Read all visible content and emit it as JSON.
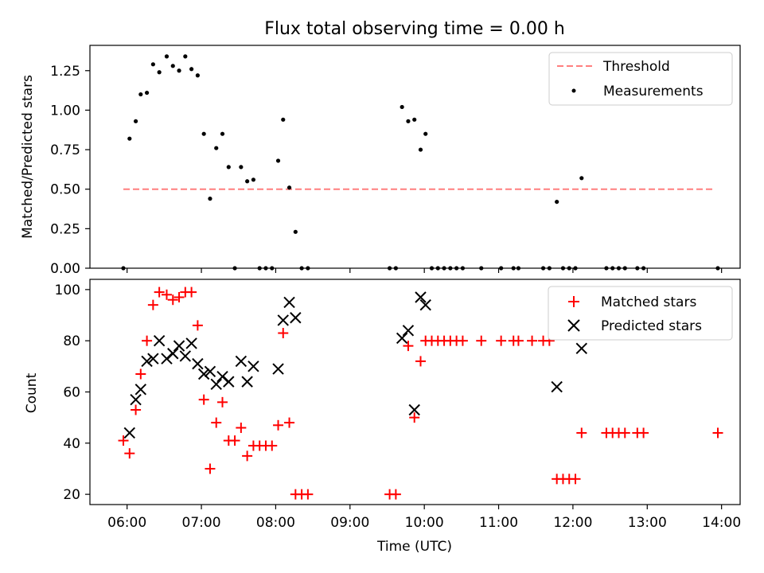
{
  "chart_data": [
    {
      "type": "scatter",
      "title": "Flux total observing time = 0.00 h",
      "xlabel": "",
      "ylabel": "Matched/Predicted stars",
      "xlim": [
        "05:30",
        "14:15"
      ],
      "ylim": [
        0,
        1.41
      ],
      "x_ticks": [
        "06:00",
        "07:00",
        "08:00",
        "09:00",
        "10:00",
        "11:00",
        "12:00",
        "13:00",
        "14:00"
      ],
      "y_ticks": [
        "0.00",
        "0.25",
        "0.50",
        "0.75",
        "1.00",
        "1.25"
      ],
      "grid": false,
      "legend_position": "top-right",
      "legend": [
        "Threshold",
        "Measurements"
      ],
      "threshold": {
        "name": "Threshold",
        "value": 0.5,
        "x_start": "05:57",
        "x_end": "13:55",
        "color": "#ff7f7f",
        "style": "dashed"
      },
      "measurements": {
        "name": "Measurements",
        "color": "#000000",
        "points": [
          [
            "05:57",
            0.0
          ],
          [
            "06:02",
            0.82
          ],
          [
            "06:07",
            0.93
          ],
          [
            "06:11",
            1.1
          ],
          [
            "06:16",
            1.11
          ],
          [
            "06:21",
            1.29
          ],
          [
            "06:26",
            1.24
          ],
          [
            "06:32",
            1.34
          ],
          [
            "06:37",
            1.28
          ],
          [
            "06:42",
            1.25
          ],
          [
            "06:47",
            1.34
          ],
          [
            "06:52",
            1.26
          ],
          [
            "06:57",
            1.22
          ],
          [
            "07:02",
            0.85
          ],
          [
            "07:07",
            0.44
          ],
          [
            "07:12",
            0.76
          ],
          [
            "07:17",
            0.85
          ],
          [
            "07:22",
            0.64
          ],
          [
            "07:27",
            0.0
          ],
          [
            "07:32",
            0.64
          ],
          [
            "07:37",
            0.55
          ],
          [
            "07:42",
            0.56
          ],
          [
            "07:47",
            0.0
          ],
          [
            "07:52",
            0.0
          ],
          [
            "07:57",
            0.0
          ],
          [
            "08:02",
            0.68
          ],
          [
            "08:06",
            0.94
          ],
          [
            "08:11",
            0.51
          ],
          [
            "08:16",
            0.23
          ],
          [
            "08:21",
            0.0
          ],
          [
            "08:26",
            0.0
          ],
          [
            "09:32",
            0.0
          ],
          [
            "09:37",
            0.0
          ],
          [
            "09:42",
            1.02
          ],
          [
            "09:47",
            0.93
          ],
          [
            "09:52",
            0.94
          ],
          [
            "09:57",
            0.75
          ],
          [
            "10:01",
            0.85
          ],
          [
            "10:06",
            0.0
          ],
          [
            "10:11",
            0.0
          ],
          [
            "10:16",
            0.0
          ],
          [
            "10:21",
            0.0
          ],
          [
            "10:26",
            0.0
          ],
          [
            "10:31",
            0.0
          ],
          [
            "10:46",
            0.0
          ],
          [
            "11:02",
            0.0
          ],
          [
            "11:12",
            0.0
          ],
          [
            "11:16",
            0.0
          ],
          [
            "11:36",
            0.0
          ],
          [
            "11:41",
            0.0
          ],
          [
            "11:47",
            0.42
          ],
          [
            "11:52",
            0.0
          ],
          [
            "11:57",
            0.0
          ],
          [
            "12:02",
            0.0
          ],
          [
            "12:07",
            0.57
          ],
          [
            "12:27",
            0.0
          ],
          [
            "12:32",
            0.0
          ],
          [
            "12:37",
            0.0
          ],
          [
            "12:42",
            0.0
          ],
          [
            "12:52",
            0.0
          ],
          [
            "12:57",
            0.0
          ],
          [
            "13:57",
            0.0
          ]
        ]
      }
    },
    {
      "type": "scatter",
      "title": "",
      "xlabel": "Time (UTC)",
      "ylabel": "Count",
      "xlim": [
        "05:30",
        "14:15"
      ],
      "ylim": [
        16,
        104
      ],
      "x_ticks": [
        "06:00",
        "07:00",
        "08:00",
        "09:00",
        "10:00",
        "11:00",
        "12:00",
        "13:00",
        "14:00"
      ],
      "y_ticks": [
        "20",
        "40",
        "60",
        "80",
        "100"
      ],
      "grid": false,
      "legend_position": "top-right",
      "legend": [
        "Matched stars",
        "Predicted stars"
      ],
      "series": [
        {
          "name": "Matched stars",
          "marker": "plus",
          "color": "#ff0000",
          "points": [
            [
              "05:57",
              41
            ],
            [
              "06:02",
              36
            ],
            [
              "06:07",
              53
            ],
            [
              "06:11",
              67
            ],
            [
              "06:16",
              80
            ],
            [
              "06:21",
              94
            ],
            [
              "06:26",
              99
            ],
            [
              "06:32",
              98
            ],
            [
              "06:37",
              96
            ],
            [
              "06:42",
              97
            ],
            [
              "06:47",
              99
            ],
            [
              "06:52",
              99
            ],
            [
              "06:57",
              86
            ],
            [
              "07:02",
              57
            ],
            [
              "07:07",
              30
            ],
            [
              "07:12",
              48
            ],
            [
              "07:17",
              56
            ],
            [
              "07:22",
              41
            ],
            [
              "07:27",
              41
            ],
            [
              "07:32",
              46
            ],
            [
              "07:37",
              35
            ],
            [
              "07:42",
              39
            ],
            [
              "07:47",
              39
            ],
            [
              "07:52",
              39
            ],
            [
              "07:57",
              39
            ],
            [
              "08:02",
              47
            ],
            [
              "08:06",
              83
            ],
            [
              "08:11",
              48
            ],
            [
              "08:16",
              20
            ],
            [
              "08:21",
              20
            ],
            [
              "08:26",
              20
            ],
            [
              "09:32",
              20
            ],
            [
              "09:37",
              20
            ],
            [
              "09:47",
              78
            ],
            [
              "09:52",
              50
            ],
            [
              "09:57",
              72
            ],
            [
              "10:01",
              80
            ],
            [
              "10:06",
              80
            ],
            [
              "10:11",
              80
            ],
            [
              "10:16",
              80
            ],
            [
              "10:21",
              80
            ],
            [
              "10:26",
              80
            ],
            [
              "10:31",
              80
            ],
            [
              "10:46",
              80
            ],
            [
              "11:02",
              80
            ],
            [
              "11:12",
              80
            ],
            [
              "11:16",
              80
            ],
            [
              "11:27",
              80
            ],
            [
              "11:36",
              80
            ],
            [
              "11:41",
              80
            ],
            [
              "11:47",
              26
            ],
            [
              "11:52",
              26
            ],
            [
              "11:57",
              26
            ],
            [
              "12:02",
              26
            ],
            [
              "12:07",
              44
            ],
            [
              "12:27",
              44
            ],
            [
              "12:32",
              44
            ],
            [
              "12:37",
              44
            ],
            [
              "12:42",
              44
            ],
            [
              "12:52",
              44
            ],
            [
              "12:57",
              44
            ],
            [
              "13:57",
              44
            ]
          ]
        },
        {
          "name": "Predicted stars",
          "marker": "x",
          "color": "#000000",
          "points": [
            [
              "06:02",
              44
            ],
            [
              "06:07",
              57
            ],
            [
              "06:11",
              61
            ],
            [
              "06:16",
              72
            ],
            [
              "06:21",
              73
            ],
            [
              "06:26",
              80
            ],
            [
              "06:32",
              73
            ],
            [
              "06:37",
              75
            ],
            [
              "06:42",
              78
            ],
            [
              "06:47",
              74
            ],
            [
              "06:52",
              79
            ],
            [
              "06:57",
              71
            ],
            [
              "07:02",
              67
            ],
            [
              "07:07",
              68
            ],
            [
              "07:12",
              63
            ],
            [
              "07:17",
              66
            ],
            [
              "07:22",
              64
            ],
            [
              "07:32",
              72
            ],
            [
              "07:37",
              64
            ],
            [
              "07:42",
              70
            ],
            [
              "08:02",
              69
            ],
            [
              "08:06",
              88
            ],
            [
              "08:11",
              95
            ],
            [
              "08:16",
              89
            ],
            [
              "09:42",
              81
            ],
            [
              "09:47",
              84
            ],
            [
              "09:52",
              53
            ],
            [
              "09:57",
              97
            ],
            [
              "10:01",
              94
            ],
            [
              "11:47",
              62
            ],
            [
              "12:07",
              77
            ]
          ]
        }
      ]
    }
  ]
}
